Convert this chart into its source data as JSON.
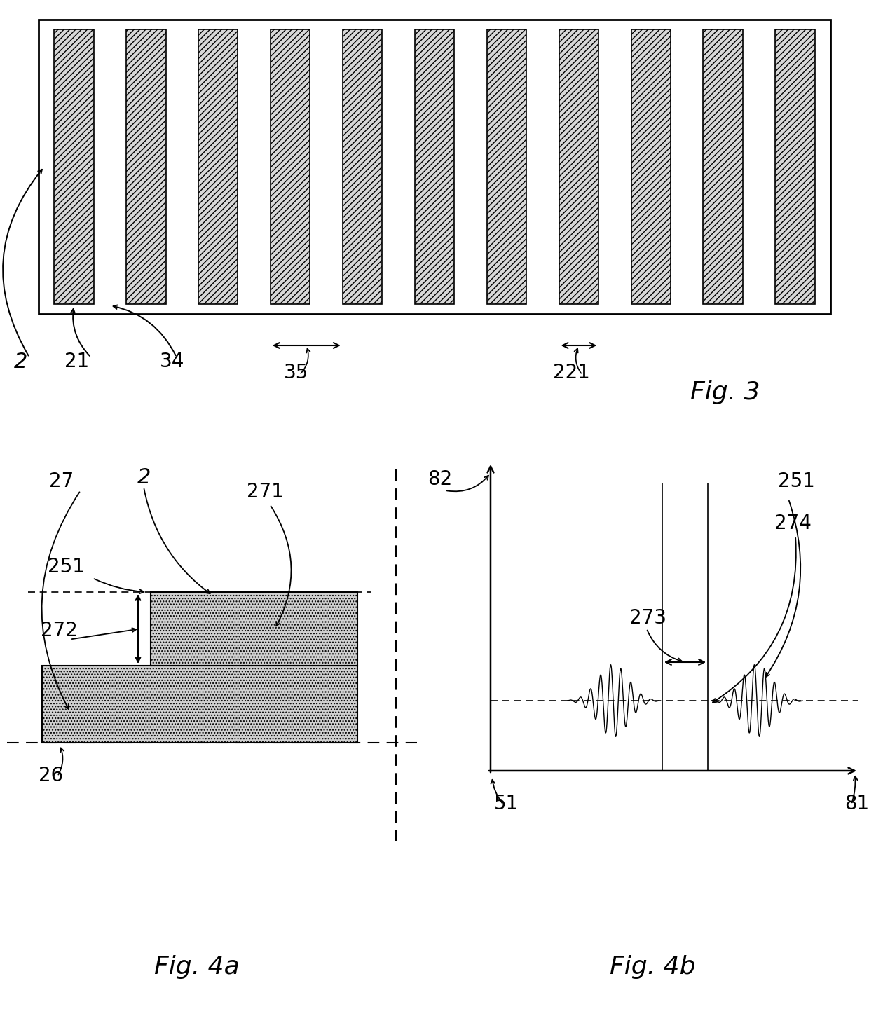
{
  "bg_color": "#ffffff",
  "line_color": "#000000",
  "fig3": {
    "n_bars": 11,
    "bar_ratio": 0.85,
    "fig_label": "Fig. 3",
    "labels": {
      "2": "2",
      "21": "21",
      "34": "34",
      "35": "35",
      "221": "221"
    }
  },
  "fig4a": {
    "fig_label": "Fig. 4a",
    "labels": {
      "27": "27",
      "2": "2",
      "271": "271",
      "251": "251",
      "272": "272",
      "26": "26"
    }
  },
  "fig4b": {
    "fig_label": "Fig. 4b",
    "labels": {
      "82": "82",
      "273": "273",
      "251": "251",
      "274": "274",
      "51": "51",
      "81": "81"
    }
  }
}
